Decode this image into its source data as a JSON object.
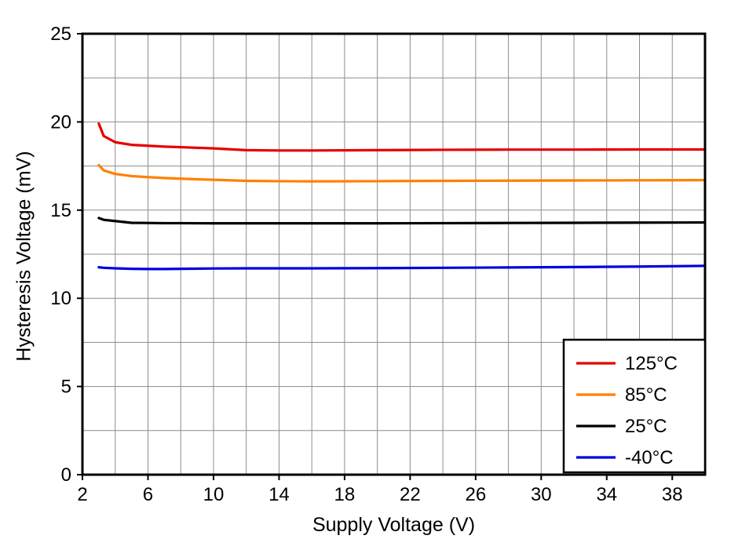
{
  "chart_data": {
    "type": "line",
    "title": "",
    "xlabel": "Supply Voltage (V)",
    "ylabel": "Hysteresis Voltage (mV)",
    "xlim": [
      2,
      40
    ],
    "ylim": [
      0,
      25
    ],
    "x_ticks": [
      2,
      6,
      10,
      14,
      18,
      22,
      26,
      30,
      34,
      38
    ],
    "y_ticks": [
      0,
      5,
      10,
      15,
      20,
      25
    ],
    "x_grid_step": 2,
    "y_grid_step": 2.5,
    "grid": true,
    "grid_color": "#8c8c8c",
    "axis_color": "#000000",
    "legend_position": "bottom-right",
    "x": [
      3,
      3.3,
      4,
      5,
      6,
      7,
      8,
      10,
      12,
      14,
      16,
      20,
      24,
      28,
      32,
      36,
      40
    ],
    "series": [
      {
        "name": "125°C",
        "color": "#e60000",
        "values": [
          19.9,
          19.2,
          18.85,
          18.7,
          18.65,
          18.6,
          18.57,
          18.5,
          18.4,
          18.38,
          18.38,
          18.4,
          18.42,
          18.43,
          18.43,
          18.44,
          18.44
        ]
      },
      {
        "name": "85°C",
        "color": "#ff8000",
        "values": [
          17.55,
          17.25,
          17.05,
          16.93,
          16.87,
          16.82,
          16.78,
          16.72,
          16.66,
          16.64,
          16.63,
          16.64,
          16.66,
          16.67,
          16.68,
          16.69,
          16.7
        ]
      },
      {
        "name": "25°C",
        "color": "#000000",
        "values": [
          14.55,
          14.45,
          14.38,
          14.28,
          14.27,
          14.26,
          14.26,
          14.25,
          14.25,
          14.25,
          14.25,
          14.25,
          14.26,
          14.27,
          14.28,
          14.29,
          14.3
        ]
      },
      {
        "name": "-40°C",
        "color": "#0000dd",
        "values": [
          11.76,
          11.73,
          11.7,
          11.67,
          11.66,
          11.66,
          11.67,
          11.69,
          11.7,
          11.7,
          11.7,
          11.71,
          11.73,
          11.75,
          11.77,
          11.8,
          11.84
        ]
      }
    ]
  }
}
